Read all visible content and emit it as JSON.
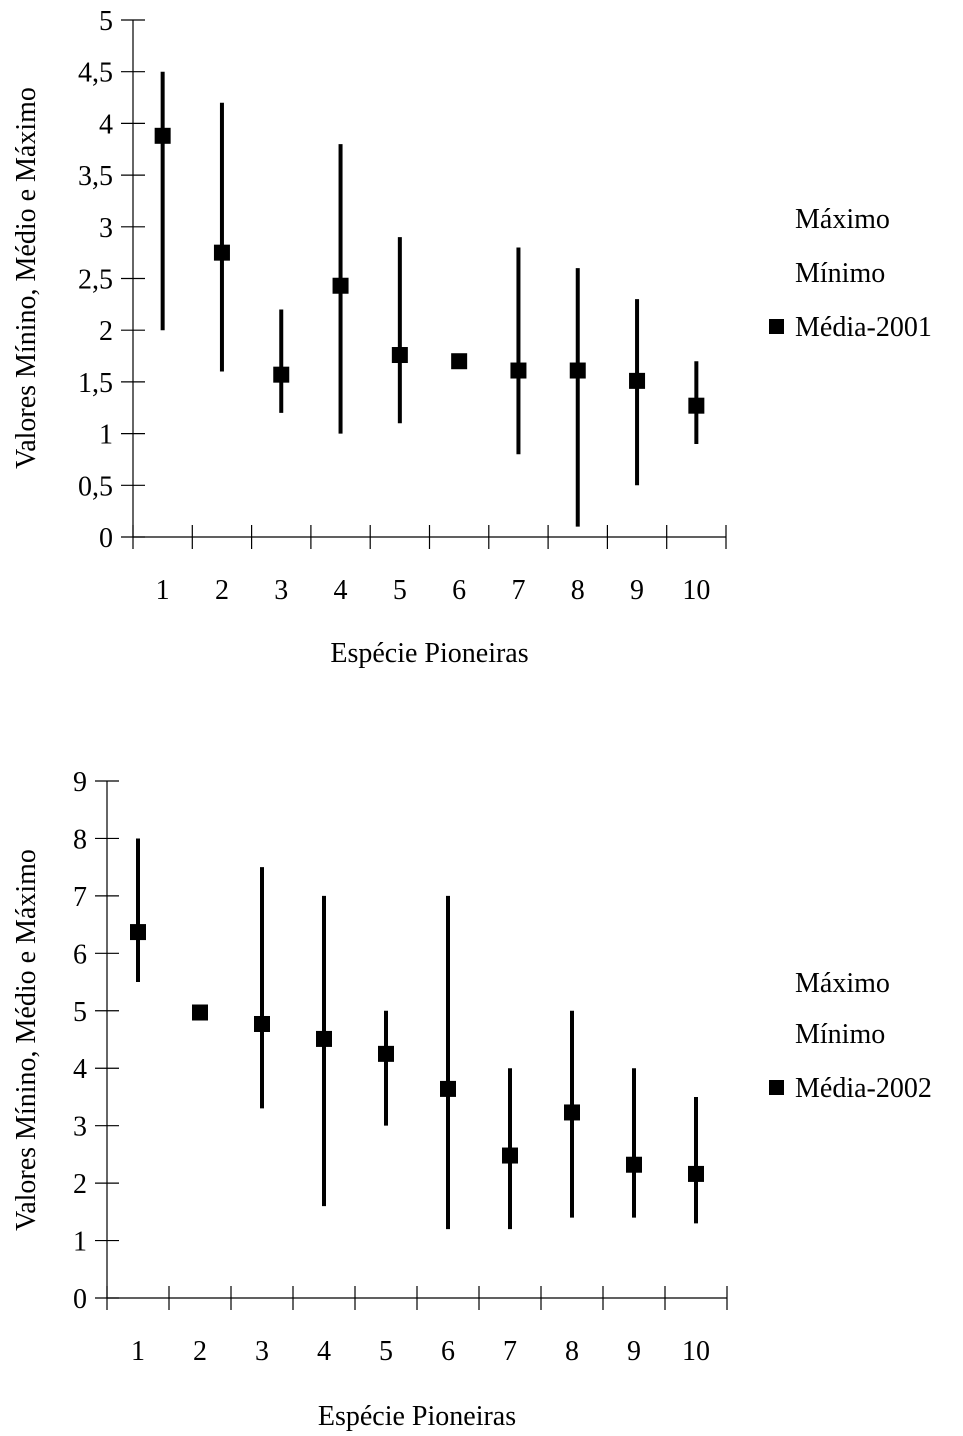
{
  "chart_data": [
    {
      "type": "high-low",
      "ylabel": "Valores Mínino, Médio e Máximo",
      "xlabel": "Espécie Pioneiras",
      "ylim": [
        0,
        5
      ],
      "yticks": [
        "0",
        "0,5",
        "1",
        "1,5",
        "2",
        "2,5",
        "3",
        "3,5",
        "4",
        "4,5",
        "5"
      ],
      "categories": [
        "1",
        "2",
        "3",
        "4",
        "5",
        "6",
        "7",
        "8",
        "9",
        "10"
      ],
      "legend": {
        "placement": "right",
        "entries": [
          "Máximo",
          "Mínimo",
          "Média-2001"
        ]
      },
      "series": [
        {
          "name": "Máximo",
          "values": [
            4.5,
            4.2,
            2.2,
            3.8,
            2.9,
            1.7,
            2.8,
            2.6,
            2.3,
            1.7
          ]
        },
        {
          "name": "Mínimo",
          "values": [
            2.0,
            1.6,
            1.2,
            1.0,
            1.1,
            1.7,
            0.8,
            0.1,
            0.5,
            0.9
          ]
        },
        {
          "name": "Média-2001",
          "values": [
            3.88,
            2.75,
            1.57,
            2.43,
            1.76,
            1.7,
            1.61,
            1.61,
            1.51,
            1.27
          ]
        }
      ]
    },
    {
      "type": "high-low",
      "ylabel": "Valores Mínino, Médio e Máximo",
      "xlabel": "Espécie Pioneiras",
      "ylim": [
        0,
        9
      ],
      "yticks": [
        "0",
        "1",
        "2",
        "3",
        "4",
        "5",
        "6",
        "7",
        "8",
        "9"
      ],
      "categories": [
        "1",
        "2",
        "3",
        "4",
        "5",
        "6",
        "7",
        "8",
        "9",
        "10"
      ],
      "legend": {
        "placement": "right",
        "entries": [
          "Máximo",
          "Mínimo",
          "Média-2002"
        ]
      },
      "series": [
        {
          "name": "Máximo",
          "values": [
            8.0,
            5.0,
            7.5,
            7.0,
            5.0,
            7.0,
            4.0,
            5.0,
            4.0,
            3.5
          ]
        },
        {
          "name": "Mínimo",
          "values": [
            5.5,
            5.0,
            3.3,
            1.6,
            3.0,
            1.2,
            1.2,
            1.4,
            1.4,
            1.3
          ]
        },
        {
          "name": "Média-2002",
          "values": [
            6.37,
            4.97,
            4.77,
            4.51,
            4.25,
            3.64,
            2.48,
            3.23,
            2.32,
            2.16
          ]
        }
      ]
    }
  ]
}
